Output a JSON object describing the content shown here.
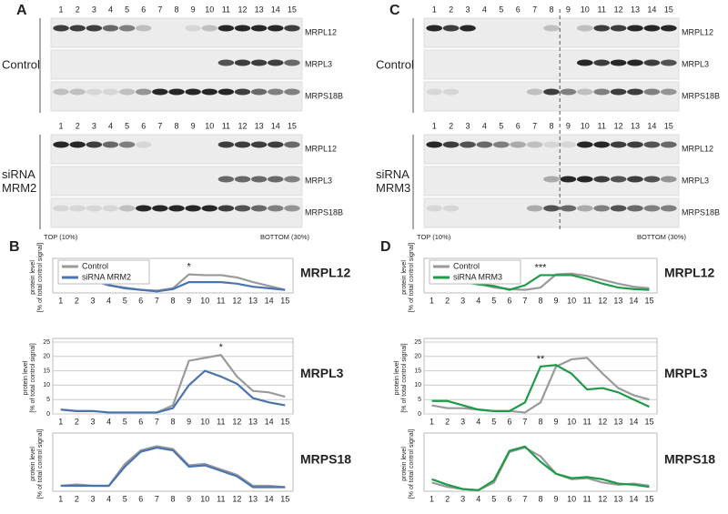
{
  "panels": [
    {
      "letter": "A",
      "lanes": [
        "1",
        "2",
        "3",
        "4",
        "5",
        "6",
        "7",
        "8",
        "9",
        "10",
        "11",
        "12",
        "13",
        "14",
        "15"
      ],
      "groups": [
        {
          "label": [
            "Control"
          ],
          "rows": [
            "MRPL12",
            "MRPL3",
            "MRPS18B"
          ]
        },
        {
          "label": [
            "siRNA",
            "MRM2"
          ],
          "rows": [
            "MRPL12",
            "MRPL3",
            "MRPS18B"
          ]
        }
      ],
      "top": "TOP (10%)",
      "bottom": "BOTTOM (30%)"
    },
    {
      "letter": "C",
      "lanes": [
        "1",
        "2",
        "3",
        "4",
        "5",
        "6",
        "7",
        "8",
        "9",
        "10",
        "11",
        "12",
        "13",
        "14",
        "15"
      ],
      "groups": [
        {
          "label": [
            "Control"
          ],
          "rows": [
            "MRPL12",
            "MRPL3",
            "MRPS18B"
          ]
        },
        {
          "label": [
            "siRNA",
            "MRM3"
          ],
          "rows": [
            "MRPL12",
            "MRPL3",
            "MRPS18B"
          ]
        }
      ],
      "top": "TOP (10%)",
      "bottom": "BOTTOM (30%)"
    }
  ],
  "chart_panels": [
    {
      "letter": "B"
    },
    {
      "letter": "D"
    }
  ],
  "chart_data": [
    {
      "type": "line",
      "title": "MRPL12",
      "y_label": "protein level",
      "y_sublabel": "[% of total control signal]",
      "legend": true,
      "categories": [
        "1",
        "2",
        "3",
        "4",
        "5",
        "6",
        "7",
        "8",
        "9",
        "10",
        "11",
        "12",
        "13",
        "14",
        "15"
      ],
      "ylim": [
        0,
        20
      ],
      "series": [
        {
          "name": "Control",
          "color": "#9a9a9a",
          "values": [
            10.5,
            10.5,
            8,
            5,
            3.5,
            2,
            1.5,
            3,
            12,
            11.5,
            11.5,
            10,
            7,
            4.5,
            2
          ]
        },
        {
          "name": "siRNA MRM2",
          "color": "#4a74b0",
          "values": [
            10.5,
            10,
            8,
            5,
            3,
            2,
            1,
            2.5,
            7,
            7,
            7,
            6,
            4,
            3,
            2
          ]
        }
      ],
      "annotations": [
        {
          "text": "*",
          "category": "9"
        }
      ]
    },
    {
      "type": "line",
      "title": "MRPL3",
      "y_label": "protein level",
      "y_sublabel": "[% of total control signal]",
      "legend": false,
      "categories": [
        "1",
        "2",
        "3",
        "4",
        "5",
        "6",
        "7",
        "8",
        "9",
        "10",
        "11",
        "12",
        "13",
        "14",
        "15"
      ],
      "ylim": [
        0,
        25
      ],
      "yticks": [
        0,
        5,
        10,
        15,
        20,
        25
      ],
      "series": [
        {
          "name": "Control",
          "color": "#9a9a9a",
          "values": [
            1.5,
            1,
            1,
            0.5,
            0.5,
            0.5,
            0.5,
            3,
            18.5,
            19.5,
            20.5,
            13,
            8,
            7.5,
            6
          ]
        },
        {
          "name": "siRNA MRM2",
          "color": "#4a74b0",
          "values": [
            1.5,
            1,
            1,
            0.5,
            0.5,
            0.5,
            0.5,
            2,
            10,
            15,
            13,
            10.5,
            5.5,
            4,
            3
          ]
        }
      ],
      "annotations": [
        {
          "text": "*",
          "category": "11"
        }
      ]
    },
    {
      "type": "line",
      "title": "MRPS18",
      "y_label": "protein level",
      "y_sublabel": "[% of total control signal]",
      "legend": false,
      "categories": [
        "1",
        "2",
        "3",
        "4",
        "5",
        "6",
        "7",
        "8",
        "9",
        "10",
        "11",
        "12",
        "13",
        "14",
        "15"
      ],
      "ylim": [
        0,
        20
      ],
      "series": [
        {
          "name": "Control",
          "color": "#9a9a9a",
          "values": [
            2,
            2.5,
            2,
            2,
            10,
            15,
            16.5,
            15.5,
            9.5,
            10,
            8,
            6,
            2,
            2,
            1.5
          ]
        },
        {
          "name": "siRNA MRM2",
          "color": "#4a74b0",
          "values": [
            2,
            2,
            2,
            2,
            9,
            14.5,
            16,
            15,
            9,
            9.5,
            7.5,
            5.5,
            1.5,
            1.5,
            1.5
          ]
        }
      ],
      "annotations": []
    },
    {
      "type": "line",
      "title": "MRPL12",
      "y_label": "protein level",
      "y_sublabel": "[% of total control signal]",
      "legend": true,
      "categories": [
        "1",
        "2",
        "3",
        "4",
        "5",
        "6",
        "7",
        "8",
        "9",
        "10",
        "11",
        "12",
        "13",
        "14",
        "15"
      ],
      "ylim": [
        0,
        20
      ],
      "series": [
        {
          "name": "Control",
          "color": "#9a9a9a",
          "values": [
            10.5,
            9.5,
            8.5,
            6,
            3.5,
            2.5,
            2,
            3.5,
            12,
            12.5,
            11,
            8.5,
            6,
            4,
            3
          ]
        },
        {
          "name": "siRNA MRM3",
          "color": "#1e9a48",
          "values": [
            10.5,
            9,
            7,
            5.5,
            4.5,
            2,
            5,
            11.5,
            11.5,
            11.5,
            9,
            6,
            3.5,
            2.5,
            2
          ]
        }
      ],
      "annotations": [
        {
          "text": "***",
          "category": "8"
        }
      ]
    },
    {
      "type": "line",
      "title": "MRPL3",
      "y_label": "protein level",
      "y_sublabel": "[% of total control signal]",
      "legend": false,
      "categories": [
        "1",
        "2",
        "3",
        "4",
        "5",
        "6",
        "7",
        "8",
        "9",
        "10",
        "11",
        "12",
        "13",
        "14",
        "15"
      ],
      "ylim": [
        0,
        25
      ],
      "yticks": [
        0,
        5,
        10,
        15,
        20,
        25
      ],
      "series": [
        {
          "name": "Control",
          "color": "#9a9a9a",
          "values": [
            3,
            2,
            2,
            1.5,
            1,
            1,
            0.5,
            4,
            16.5,
            19,
            19.5,
            14,
            9,
            6.5,
            5
          ]
        },
        {
          "name": "siRNA MRM3",
          "color": "#1e9a48",
          "values": [
            4.5,
            4.5,
            3,
            1.5,
            1,
            1,
            4,
            16.5,
            17,
            14,
            8.5,
            9,
            7.5,
            5,
            2.5
          ]
        }
      ],
      "annotations": [
        {
          "text": "**",
          "category": "8"
        }
      ]
    },
    {
      "type": "line",
      "title": "MRPS18",
      "y_label": "protein level",
      "y_sublabel": "[% of total control signal]",
      "legend": false,
      "categories": [
        "1",
        "2",
        "3",
        "4",
        "5",
        "6",
        "7",
        "8",
        "9",
        "10",
        "11",
        "12",
        "13",
        "14",
        "15"
      ],
      "ylim": [
        0,
        25
      ],
      "series": [
        {
          "name": "Control",
          "color": "#9a9a9a",
          "values": [
            4,
            2,
            1,
            0.5,
            4,
            18,
            20,
            16,
            8,
            5.5,
            6,
            4,
            3,
            3.5,
            2.5
          ]
        },
        {
          "name": "siRNA MRM3",
          "color": "#1e9a48",
          "values": [
            5.5,
            3,
            1,
            0.5,
            5,
            18.5,
            20.5,
            13.5,
            8,
            6,
            6.5,
            5.5,
            3.5,
            3,
            2
          ]
        }
      ],
      "annotations": []
    }
  ]
}
